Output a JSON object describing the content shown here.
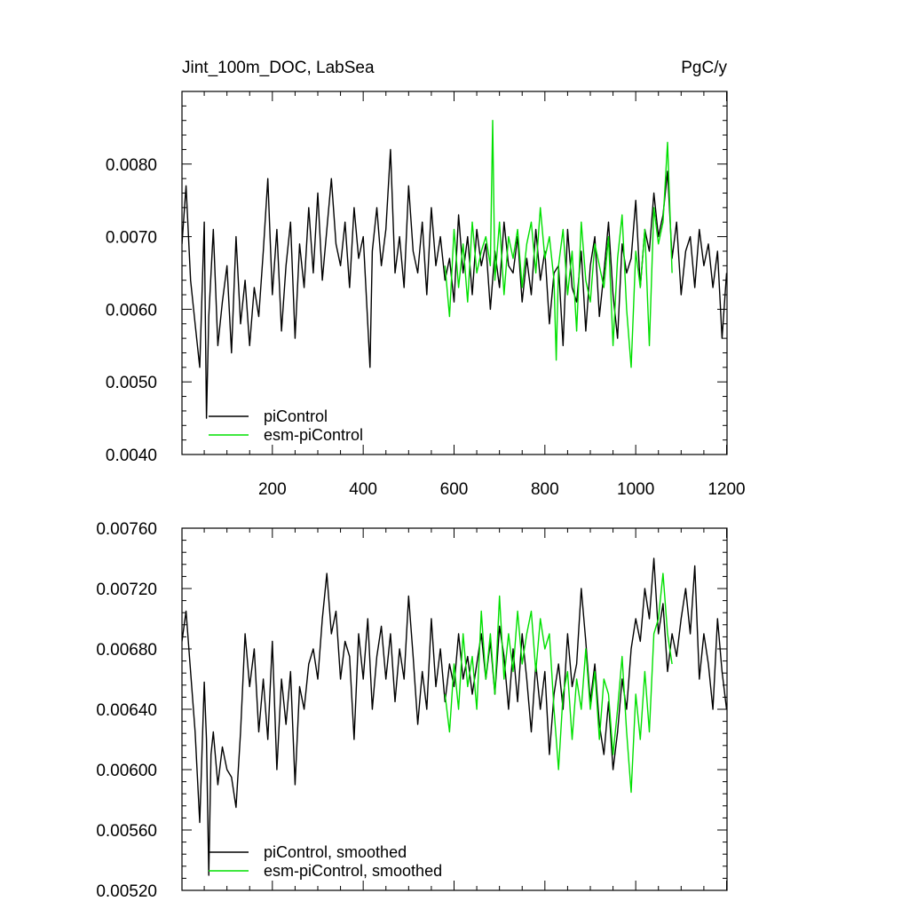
{
  "figure": {
    "title_left": "Jint_100m_DOC, LabSea",
    "title_right": "PgC/y"
  },
  "colors": {
    "picontrol": "#000000",
    "esm_picontrol": "#00e000"
  },
  "chart_data": [
    {
      "type": "line",
      "title": "Jint_100m_DOC, LabSea",
      "units": "PgC/y",
      "xlabel": "",
      "ylabel": "",
      "xlim": [
        1,
        1201
      ],
      "ylim": [
        0.004,
        0.009
      ],
      "xticks": [
        200,
        400,
        600,
        800,
        1000,
        1200
      ],
      "xtick_labels": [
        "200",
        "400",
        "600",
        "800",
        "1000",
        "1200"
      ],
      "yticks": [
        0.004,
        0.005,
        0.006,
        0.007,
        0.008
      ],
      "ytick_labels": [
        "0.0040",
        "0.0050",
        "0.0060",
        "0.0070",
        "0.0080"
      ],
      "grid": false,
      "legend": "bottom-left",
      "series": [
        {
          "name": "piControl",
          "x": [
            1,
            10,
            20,
            30,
            40,
            50,
            55,
            60,
            70,
            80,
            90,
            100,
            110,
            120,
            130,
            140,
            150,
            160,
            170,
            180,
            190,
            200,
            210,
            220,
            230,
            240,
            250,
            260,
            270,
            280,
            290,
            300,
            310,
            320,
            330,
            340,
            350,
            360,
            370,
            380,
            390,
            400,
            410,
            415,
            420,
            430,
            440,
            450,
            460,
            470,
            480,
            490,
            500,
            510,
            520,
            530,
            540,
            550,
            560,
            570,
            580,
            590,
            600,
            610,
            620,
            630,
            640,
            650,
            660,
            670,
            680,
            690,
            700,
            710,
            720,
            730,
            740,
            750,
            760,
            770,
            780,
            790,
            800,
            810,
            820,
            830,
            840,
            850,
            860,
            870,
            880,
            890,
            900,
            910,
            920,
            930,
            940,
            950,
            960,
            970,
            980,
            990,
            1000,
            1010,
            1020,
            1030,
            1040,
            1050,
            1060,
            1070,
            1080,
            1090,
            1100,
            1110,
            1120,
            1130,
            1140,
            1150,
            1160,
            1170,
            1180,
            1190,
            1200
          ],
          "y": [
            0.0069,
            0.0077,
            0.0064,
            0.0058,
            0.0052,
            0.0072,
            0.0045,
            0.0059,
            0.0071,
            0.0055,
            0.0061,
            0.0066,
            0.0054,
            0.007,
            0.0058,
            0.0064,
            0.0055,
            0.0063,
            0.0059,
            0.0068,
            0.0078,
            0.0062,
            0.0071,
            0.0057,
            0.0066,
            0.0072,
            0.0056,
            0.0069,
            0.0063,
            0.0074,
            0.0065,
            0.0076,
            0.0064,
            0.0071,
            0.0078,
            0.0069,
            0.0066,
            0.0072,
            0.0063,
            0.0074,
            0.0067,
            0.007,
            0.0058,
            0.0052,
            0.0068,
            0.0074,
            0.0066,
            0.0071,
            0.0082,
            0.0065,
            0.007,
            0.0063,
            0.0077,
            0.0068,
            0.0065,
            0.0072,
            0.0062,
            0.0074,
            0.0066,
            0.007,
            0.0064,
            0.0067,
            0.0061,
            0.0073,
            0.0065,
            0.007,
            0.0062,
            0.0071,
            0.0066,
            0.0069,
            0.006,
            0.0068,
            0.0063,
            0.0072,
            0.0066,
            0.0065,
            0.007,
            0.0061,
            0.0067,
            0.0062,
            0.0071,
            0.0064,
            0.0068,
            0.0058,
            0.0065,
            0.0066,
            0.0055,
            0.0071,
            0.0063,
            0.0061,
            0.0068,
            0.0057,
            0.0066,
            0.007,
            0.0059,
            0.0065,
            0.0072,
            0.0062,
            0.0056,
            0.0069,
            0.0065,
            0.0067,
            0.0075,
            0.0063,
            0.0071,
            0.0068,
            0.0076,
            0.007,
            0.0073,
            0.0079,
            0.0067,
            0.0072,
            0.0062,
            0.0068,
            0.007,
            0.0063,
            0.0071,
            0.0066,
            0.0069,
            0.0063,
            0.0068,
            0.0056,
            0.0065
          ]
        },
        {
          "name": "esm-piControl",
          "x": [
            580,
            590,
            600,
            610,
            620,
            630,
            640,
            650,
            660,
            670,
            680,
            685,
            690,
            700,
            710,
            720,
            730,
            740,
            750,
            760,
            770,
            780,
            790,
            800,
            810,
            820,
            825,
            830,
            840,
            850,
            860,
            870,
            880,
            890,
            900,
            910,
            920,
            930,
            940,
            950,
            960,
            970,
            980,
            990,
            1000,
            1010,
            1020,
            1030,
            1040,
            1050,
            1060,
            1070,
            1080
          ],
          "y": [
            0.0066,
            0.0059,
            0.0071,
            0.0063,
            0.0069,
            0.0061,
            0.0072,
            0.0065,
            0.0068,
            0.007,
            0.0066,
            0.0086,
            0.0064,
            0.0072,
            0.0062,
            0.007,
            0.0067,
            0.0071,
            0.0063,
            0.0069,
            0.0072,
            0.0065,
            0.0074,
            0.0067,
            0.007,
            0.0064,
            0.0053,
            0.0066,
            0.0071,
            0.0062,
            0.0068,
            0.0057,
            0.0072,
            0.0064,
            0.0061,
            0.0069,
            0.0066,
            0.0063,
            0.007,
            0.0055,
            0.0067,
            0.0073,
            0.006,
            0.0052,
            0.0068,
            0.0063,
            0.0071,
            0.0055,
            0.0074,
            0.0069,
            0.0072,
            0.0083,
            0.0065
          ]
        }
      ]
    },
    {
      "type": "line",
      "title": "",
      "xlabel": "",
      "ylabel": "",
      "xlim": [
        1,
        1201
      ],
      "ylim": [
        0.0052,
        0.0076
      ],
      "xticks": [
        200,
        400,
        600,
        800,
        1000,
        1200
      ],
      "xtick_labels": [],
      "yticks": [
        0.0052,
        0.0056,
        0.006,
        0.0064,
        0.0068,
        0.0072,
        0.0076
      ],
      "ytick_labels": [
        "0.00520",
        "0.00560",
        "0.00600",
        "0.00640",
        "0.00680",
        "0.00720",
        "0.00760"
      ],
      "grid": false,
      "legend": "bottom-left",
      "series": [
        {
          "name": "piControl, smoothed",
          "x": [
            1,
            10,
            20,
            30,
            40,
            50,
            55,
            60,
            65,
            70,
            80,
            90,
            100,
            110,
            120,
            130,
            140,
            150,
            160,
            170,
            180,
            190,
            200,
            210,
            220,
            230,
            240,
            250,
            260,
            270,
            280,
            290,
            300,
            310,
            320,
            330,
            340,
            350,
            360,
            370,
            380,
            390,
            400,
            410,
            420,
            430,
            440,
            450,
            460,
            470,
            480,
            490,
            500,
            510,
            520,
            530,
            540,
            550,
            560,
            570,
            580,
            590,
            600,
            610,
            620,
            630,
            640,
            650,
            660,
            670,
            680,
            690,
            700,
            710,
            720,
            730,
            740,
            750,
            760,
            770,
            780,
            790,
            800,
            810,
            820,
            830,
            840,
            850,
            860,
            870,
            880,
            890,
            900,
            910,
            920,
            930,
            940,
            950,
            960,
            970,
            980,
            990,
            1000,
            1010,
            1020,
            1030,
            1040,
            1050,
            1060,
            1070,
            1080,
            1090,
            1100,
            1110,
            1120,
            1130,
            1140,
            1150,
            1160,
            1170,
            1180,
            1190,
            1200
          ],
          "y": [
            0.00685,
            0.00705,
            0.00665,
            0.00625,
            0.00565,
            0.00658,
            0.0062,
            0.0053,
            0.0061,
            0.00625,
            0.0059,
            0.00615,
            0.006,
            0.00595,
            0.00575,
            0.00625,
            0.0069,
            0.00655,
            0.0068,
            0.00625,
            0.0066,
            0.0062,
            0.00685,
            0.006,
            0.0066,
            0.0063,
            0.00665,
            0.0059,
            0.00655,
            0.0064,
            0.0067,
            0.0068,
            0.0066,
            0.007,
            0.0073,
            0.0069,
            0.00705,
            0.0066,
            0.00685,
            0.00675,
            0.0062,
            0.0069,
            0.0066,
            0.007,
            0.0064,
            0.00675,
            0.00695,
            0.0066,
            0.0069,
            0.00645,
            0.0068,
            0.0066,
            0.00715,
            0.00675,
            0.0063,
            0.00665,
            0.0064,
            0.007,
            0.00655,
            0.0068,
            0.00645,
            0.0067,
            0.00655,
            0.0069,
            0.0066,
            0.00675,
            0.0065,
            0.0067,
            0.0069,
            0.0066,
            0.00685,
            0.0065,
            0.00695,
            0.00675,
            0.0064,
            0.0068,
            0.00645,
            0.0069,
            0.0066,
            0.00625,
            0.0067,
            0.0064,
            0.00665,
            0.0061,
            0.0065,
            0.0067,
            0.0064,
            0.0069,
            0.00655,
            0.0067,
            0.0072,
            0.00685,
            0.00645,
            0.0067,
            0.0063,
            0.0061,
            0.00645,
            0.006,
            0.00625,
            0.0066,
            0.0064,
            0.0068,
            0.007,
            0.00685,
            0.0072,
            0.007,
            0.0074,
            0.0069,
            0.0071,
            0.00665,
            0.0069,
            0.00675,
            0.007,
            0.0072,
            0.0069,
            0.00735,
            0.0066,
            0.0069,
            0.0067,
            0.0064,
            0.007,
            0.00665,
            0.0064
          ]
        },
        {
          "name": "esm-piControl, smoothed",
          "x": [
            580,
            590,
            600,
            610,
            620,
            630,
            640,
            650,
            660,
            670,
            680,
            690,
            700,
            710,
            720,
            730,
            740,
            750,
            760,
            770,
            780,
            790,
            800,
            810,
            820,
            830,
            840,
            850,
            860,
            870,
            880,
            890,
            900,
            910,
            920,
            930,
            940,
            950,
            960,
            970,
            980,
            990,
            1000,
            1010,
            1020,
            1030,
            1040,
            1050,
            1060,
            1070,
            1080
          ],
          "y": [
            0.0065,
            0.00625,
            0.0067,
            0.0064,
            0.0069,
            0.00655,
            0.00675,
            0.0064,
            0.00705,
            0.0066,
            0.0069,
            0.0065,
            0.00715,
            0.0066,
            0.0069,
            0.00665,
            0.00705,
            0.0067,
            0.0069,
            0.00705,
            0.00665,
            0.007,
            0.0068,
            0.0069,
            0.0064,
            0.006,
            0.0065,
            0.00665,
            0.0062,
            0.0066,
            0.0064,
            0.0068,
            0.0064,
            0.00665,
            0.0062,
            0.0066,
            0.0065,
            0.0061,
            0.0064,
            0.00675,
            0.00625,
            0.00585,
            0.0065,
            0.0062,
            0.00665,
            0.00625,
            0.0069,
            0.007,
            0.0073,
            0.0069,
            0.0067
          ]
        }
      ]
    }
  ]
}
